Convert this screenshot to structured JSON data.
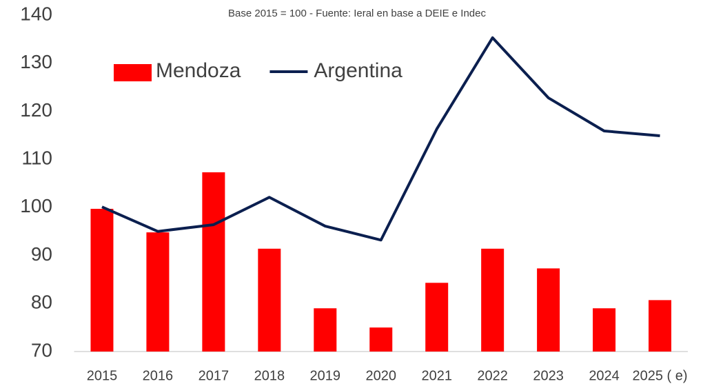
{
  "chart_data": {
    "type": "bar",
    "subtitle": "Base 2015 = 100 - Fuente: Ieral en base a DEIE e Indec",
    "categories": [
      "2015",
      "2016",
      "2017",
      "2018",
      "2019",
      "2020",
      "2021",
      "2022",
      "2023",
      "2024",
      "2025 ( e)"
    ],
    "series": [
      {
        "name": "Mendoza",
        "type": "bar",
        "color": "#ff0000",
        "values": [
          99.7,
          94.8,
          107.3,
          91.4,
          79,
          75,
          84.3,
          91.4,
          87.3,
          79,
          80.7
        ]
      },
      {
        "name": "Argentina",
        "type": "line",
        "color": "#0b1f4f",
        "values": [
          100.1,
          95,
          96.4,
          102.1,
          96.1,
          93.2,
          116.3,
          135.3,
          122.8,
          115.9,
          114.9
        ]
      }
    ],
    "ylim": [
      70,
      140
    ],
    "yticks": [
      70,
      80,
      90,
      100,
      110,
      120,
      130,
      140
    ],
    "grid": false,
    "legend": "top-left"
  }
}
